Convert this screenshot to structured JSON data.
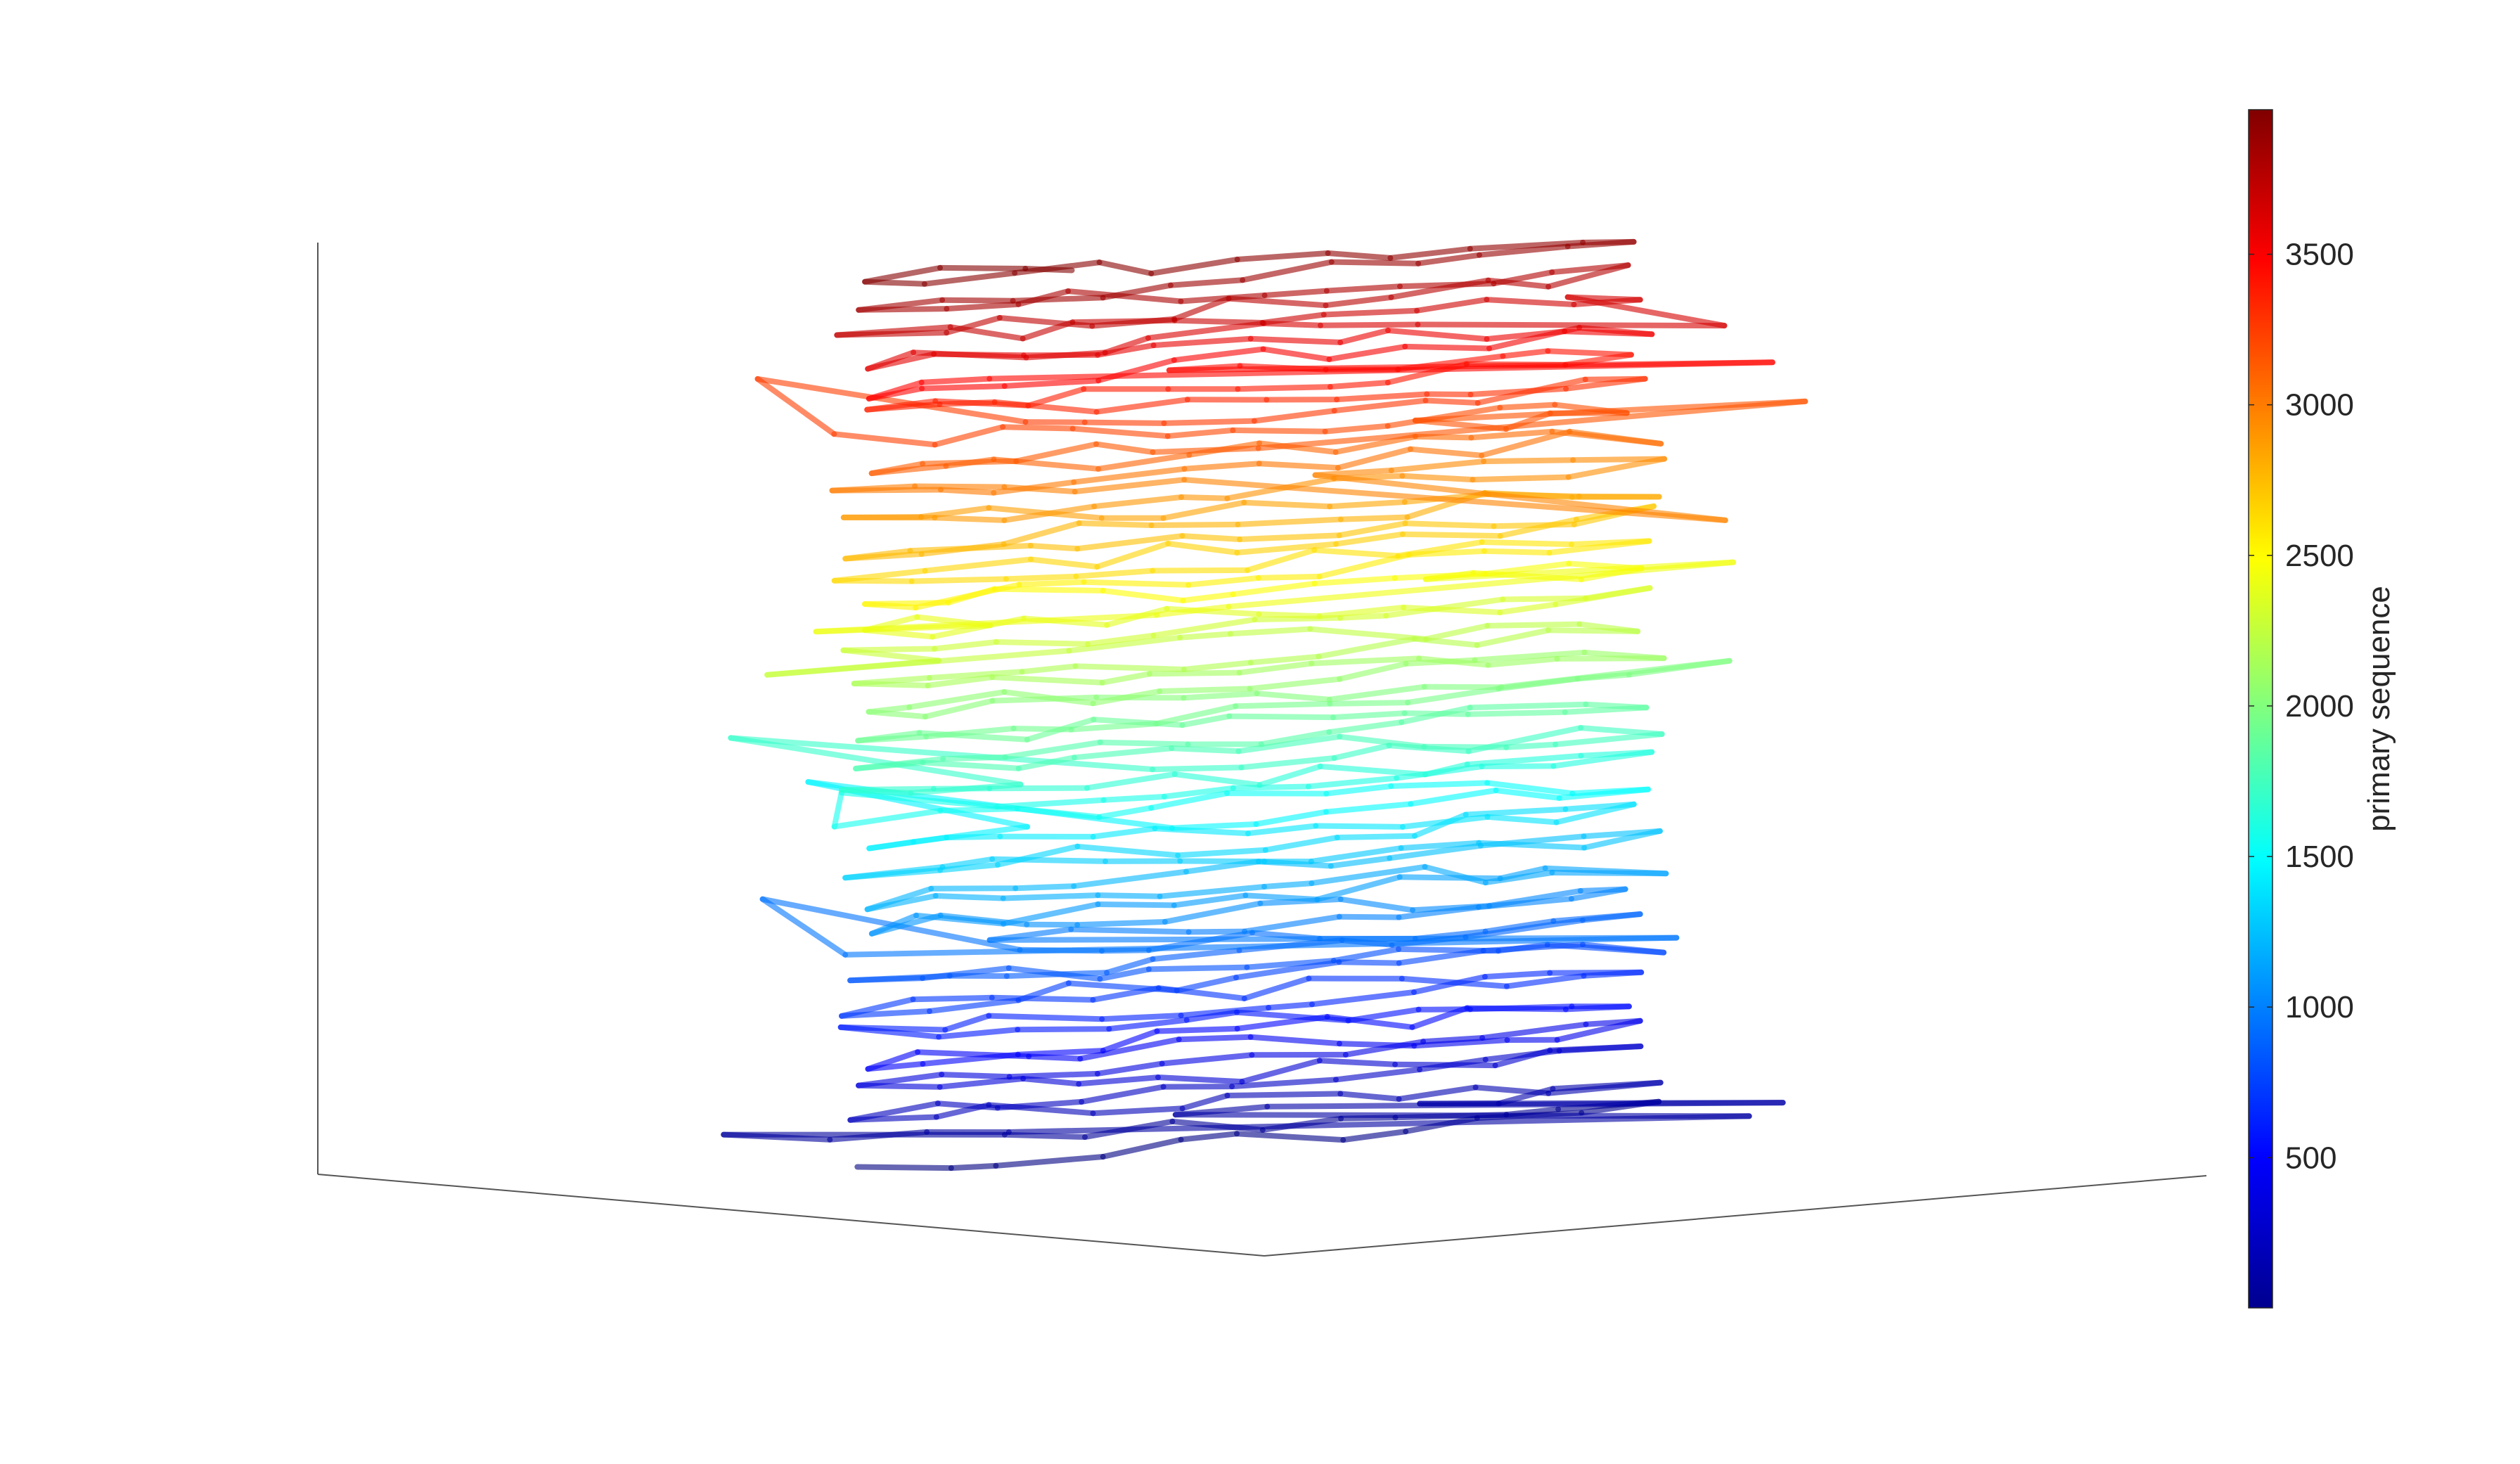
{
  "chart_data": {
    "type": "line",
    "subtype": "3d-polymer-trace",
    "title": "",
    "xlabel": "",
    "ylabel": "",
    "zlabel": "",
    "grid": false,
    "colormap": "jet",
    "line_alpha": 0.6,
    "colorbar": {
      "label": "primary sequence",
      "range": [
        1,
        3980
      ],
      "ticks": [
        500,
        1000,
        1500,
        2000,
        2500,
        3000,
        3500
      ],
      "tick_labels": [
        "500",
        "1000",
        "1500",
        "2000",
        "2500",
        "3000",
        "3500"
      ],
      "placement": "right"
    },
    "series": [
      {
        "sequence_range": [
          1,
          400
        ],
        "z_band": "bottom",
        "color": "#00008f"
      },
      {
        "sequence_range": [
          400,
          900
        ],
        "z_band": "lower",
        "color": "#0000ff"
      },
      {
        "sequence_range": [
          900,
          1400
        ],
        "z_band": "lower-middle",
        "color": "#0080ff"
      },
      {
        "sequence_range": [
          1400,
          1800
        ],
        "z_band": "middle",
        "color": "#00ffff"
      },
      {
        "sequence_range": [
          1800,
          2300
        ],
        "z_band": "middle",
        "color": "#80ff80"
      },
      {
        "sequence_range": [
          2300,
          2800
        ],
        "z_band": "upper-middle",
        "color": "#ffff00"
      },
      {
        "sequence_range": [
          2800,
          3300
        ],
        "z_band": "upper",
        "color": "#ff8000"
      },
      {
        "sequence_range": [
          3300,
          3980
        ],
        "z_band": "top",
        "color": "#ff0000"
      }
    ]
  }
}
